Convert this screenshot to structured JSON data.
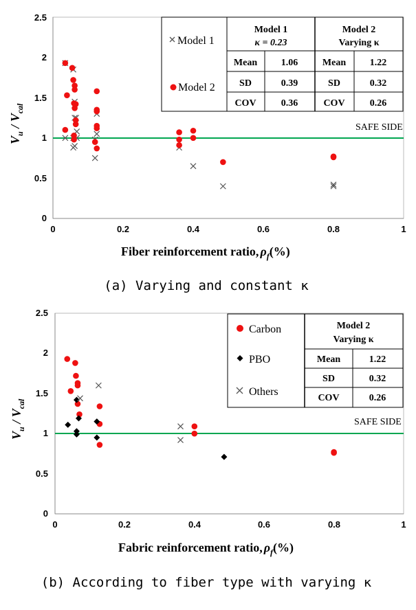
{
  "chart_data": [
    {
      "type": "scatter",
      "caption": "(a) Varying and constant κ",
      "xlabel": "Fiber reinforcement ratio,",
      "xlabel_symbol": "ρ",
      "xlabel_sub": "f",
      "xlabel_unit": "(%)",
      "ylabel_main": "V",
      "ylabel_sub1": "u",
      "ylabel_div": " / V",
      "ylabel_sub2": "cal",
      "xlim": [
        0,
        1
      ],
      "ylim": [
        0,
        2.5
      ],
      "xticks": [
        "0",
        "0.2",
        "0.4",
        "0.6",
        "0.8",
        "1"
      ],
      "yticks": [
        "0",
        "0.5",
        "1",
        "1.5",
        "2",
        "2.5"
      ],
      "reference_line": {
        "y": 1,
        "color": "#00a650",
        "label": "SAFE SIDE"
      },
      "legend": [
        "Model 1",
        "Model 2"
      ],
      "series": [
        {
          "name": "Model 1",
          "marker": "x",
          "color": "#555555",
          "points": [
            [
              0.035,
              1.93
            ],
            [
              0.035,
              1.0
            ],
            [
              0.058,
              1.85
            ],
            [
              0.058,
              1.0
            ],
            [
              0.058,
              0.88
            ],
            [
              0.062,
              1.45
            ],
            [
              0.062,
              1.25
            ],
            [
              0.062,
              0.9
            ],
            [
              0.066,
              1.25
            ],
            [
              0.068,
              1.08
            ],
            [
              0.068,
              1.0
            ],
            [
              0.12,
              0.98
            ],
            [
              0.12,
              0.75
            ],
            [
              0.125,
              1.3
            ],
            [
              0.125,
              1.05
            ],
            [
              0.36,
              0.88
            ],
            [
              0.4,
              0.65
            ],
            [
              0.485,
              0.4
            ],
            [
              0.8,
              0.42
            ],
            [
              0.8,
              0.4
            ]
          ]
        },
        {
          "name": "Model 2",
          "marker": "circle",
          "color": "#ee1111",
          "points": [
            [
              0.035,
              1.93
            ],
            [
              0.035,
              1.1
            ],
            [
              0.04,
              1.53
            ],
            [
              0.055,
              1.87
            ],
            [
              0.058,
              1.72
            ],
            [
              0.06,
              1.43
            ],
            [
              0.06,
              1.03
            ],
            [
              0.06,
              0.98
            ],
            [
              0.062,
              1.65
            ],
            [
              0.062,
              1.6
            ],
            [
              0.062,
              1.37
            ],
            [
              0.065,
              1.42
            ],
            [
              0.065,
              1.22
            ],
            [
              0.065,
              1.17
            ],
            [
              0.12,
              0.95
            ],
            [
              0.125,
              1.58
            ],
            [
              0.125,
              1.35
            ],
            [
              0.125,
              1.33
            ],
            [
              0.125,
              1.15
            ],
            [
              0.125,
              1.12
            ],
            [
              0.125,
              0.87
            ],
            [
              0.36,
              1.07
            ],
            [
              0.36,
              0.98
            ],
            [
              0.36,
              0.91
            ],
            [
              0.4,
              1.09
            ],
            [
              0.4,
              1.0
            ],
            [
              0.485,
              0.7
            ],
            [
              0.8,
              0.77
            ],
            [
              0.8,
              0.76
            ]
          ]
        }
      ],
      "table": {
        "headers": [
          [
            "Model 1",
            "κ = 0.23"
          ],
          [
            "Model 2",
            "Varying  κ"
          ]
        ],
        "rows": [
          {
            "label": "Mean",
            "m1": "1.06",
            "m2": "1.22"
          },
          {
            "label": "SD",
            "m1": "0.39",
            "m2": "0.32"
          },
          {
            "label": "COV",
            "m1": "0.36",
            "m2": "0.26"
          }
        ]
      }
    },
    {
      "type": "scatter",
      "caption": "(b) According to fiber type with varying κ",
      "xlabel": "Fabric reinforcement ratio,",
      "xlabel_symbol": "ρ",
      "xlabel_sub": "f",
      "xlabel_unit": "(%)",
      "ylabel_main": "V",
      "ylabel_sub1": "u",
      "ylabel_div": " / V",
      "ylabel_sub2": "cal",
      "xlim": [
        0,
        1
      ],
      "ylim": [
        0,
        2.5
      ],
      "xticks": [
        "0",
        "0.2",
        "0.4",
        "0.6",
        "0.8",
        "1"
      ],
      "yticks": [
        "0",
        "0.5",
        "1",
        "1.5",
        "2",
        "2.5"
      ],
      "reference_line": {
        "y": 1,
        "color": "#00a650",
        "label": "SAFE SIDE"
      },
      "legend": [
        "Carbon",
        "PBO",
        "Others"
      ],
      "series": [
        {
          "name": "Carbon",
          "marker": "circle",
          "color": "#ee1111",
          "points": [
            [
              0.035,
              1.93
            ],
            [
              0.045,
              1.53
            ],
            [
              0.058,
              1.88
            ],
            [
              0.06,
              1.72
            ],
            [
              0.065,
              1.63
            ],
            [
              0.065,
              1.6
            ],
            [
              0.065,
              1.37
            ],
            [
              0.07,
              1.24
            ],
            [
              0.128,
              1.34
            ],
            [
              0.128,
              1.12
            ],
            [
              0.128,
              0.86
            ],
            [
              0.4,
              1.09
            ],
            [
              0.4,
              1.0
            ],
            [
              0.8,
              0.77
            ],
            [
              0.8,
              0.76
            ]
          ]
        },
        {
          "name": "PBO",
          "marker": "diamond",
          "color": "#000000",
          "points": [
            [
              0.037,
              1.11
            ],
            [
              0.062,
              1.42
            ],
            [
              0.062,
              1.03
            ],
            [
              0.062,
              0.99
            ],
            [
              0.068,
              1.19
            ],
            [
              0.12,
              1.15
            ],
            [
              0.12,
              0.95
            ],
            [
              0.485,
              0.71
            ]
          ]
        },
        {
          "name": "Others",
          "marker": "x",
          "color": "#555555",
          "points": [
            [
              0.072,
              1.44
            ],
            [
              0.125,
              1.6
            ],
            [
              0.36,
              1.09
            ],
            [
              0.36,
              0.92
            ]
          ]
        }
      ],
      "table": {
        "headers": [
          [
            "Model 2",
            "Varying  κ"
          ]
        ],
        "rows": [
          {
            "label": "Mean",
            "m2": "1.22"
          },
          {
            "label": "SD",
            "m2": "0.32"
          },
          {
            "label": "COV",
            "m2": "0.26"
          }
        ]
      }
    }
  ]
}
